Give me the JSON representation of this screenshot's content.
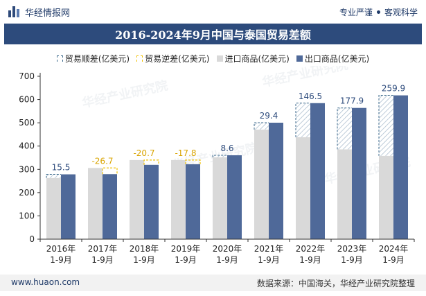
{
  "header": {
    "brand_name": "华经情报网",
    "tagline_left": "专业严谨",
    "tagline_right": "客观科学"
  },
  "title": "2016-2024年9月中国与泰国贸易差额",
  "legend": {
    "surplus": "贸易顺差(亿美元)",
    "deficit": "贸易逆差(亿美元)",
    "import": "进口商品(亿美元)",
    "export": "出口商品(亿美元)"
  },
  "footer": {
    "website": "www.huaon.com",
    "source": "数据来源：中国海关，华经产业研究院整理"
  },
  "watermark": "华经产业研究院",
  "colors": {
    "import": "#d9d9d9",
    "export": "#4f6999",
    "surplus_border": "#3c6a8c",
    "deficit_border": "#f0c000",
    "surplus_label": "#2d4b7c",
    "deficit_label": "#d9a400",
    "axis": "#333333"
  },
  "chart_data": {
    "type": "bar",
    "categories": [
      "2016年\n1-9月",
      "2017年\n1-9月",
      "2018年\n1-9月",
      "2019年\n1-9月",
      "2020年\n1-9月",
      "2021年\n1-9月",
      "2022年\n1-9月",
      "2023年\n1-9月",
      "2024年\n1-9月"
    ],
    "series": [
      {
        "name": "进口商品(亿美元)",
        "values": [
          263,
          306,
          340,
          340,
          352,
          471,
          438,
          386,
          358
        ]
      },
      {
        "name": "出口商品(亿美元)",
        "values": [
          278.5,
          279.3,
          319.3,
          322.2,
          360.6,
          500.4,
          584.5,
          563.9,
          617.9
        ]
      }
    ],
    "balance": [
      {
        "label": "15.5",
        "type": "surplus"
      },
      {
        "label": "-26.7",
        "type": "deficit"
      },
      {
        "label": "-20.7",
        "type": "deficit"
      },
      {
        "label": "-17.8",
        "type": "deficit"
      },
      {
        "label": "8.6",
        "type": "surplus"
      },
      {
        "label": "29.4",
        "type": "surplus"
      },
      {
        "label": "146.5",
        "type": "surplus"
      },
      {
        "label": "177.9",
        "type": "surplus"
      },
      {
        "label": "259.9",
        "type": "surplus"
      }
    ],
    "ylim": [
      0,
      700
    ],
    "yticks": [
      0,
      100,
      200,
      300,
      400,
      500,
      600,
      700
    ],
    "grid": false,
    "legend_position": "top"
  }
}
